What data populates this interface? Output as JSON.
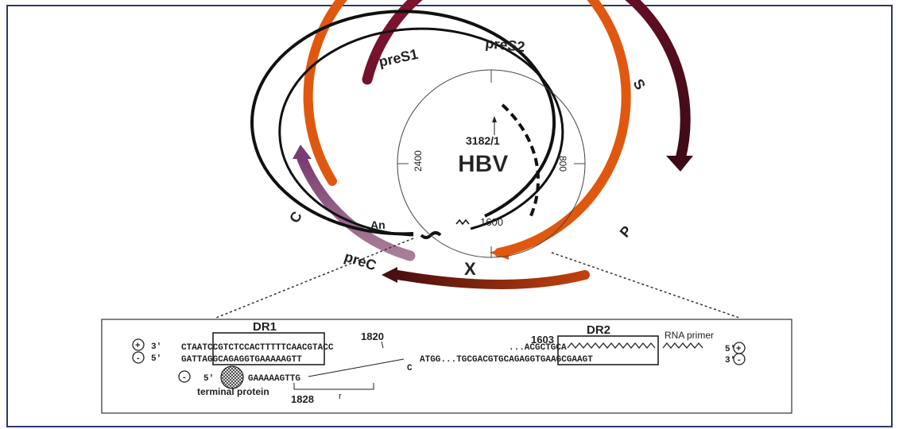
{
  "genome": {
    "center_label": "HBV",
    "origin_label": "3182/1",
    "tick_labels": [
      "800",
      "1600",
      "2400"
    ],
    "cap_label": "An"
  },
  "orfs": {
    "preS1": "preS1",
    "preS2": "preS2",
    "S": "S",
    "P": "P",
    "X": "X",
    "C": "C",
    "preC": "preC"
  },
  "colors": {
    "preS": "#8b1535",
    "S": "#4a0d1c",
    "P": "#e0580f",
    "X_start": "#4a0f0f",
    "X_end": "#c2410c",
    "C": "#7a3b73",
    "preC": "#9c6a88",
    "dna": "#111111",
    "frame": "#2b3a67"
  },
  "inset": {
    "dr1_label": "DR1",
    "dr2_label": "DR2",
    "pos_1820": "1820",
    "pos_1603": "1603",
    "pos_1828": "1828",
    "rna_primer_label": "RNA primer",
    "terminal_protein_label": "terminal protein",
    "strand_top_left": "3'",
    "strand_bottom_left": "5'",
    "strand_top_right": "5'",
    "strand_bottom_right": "3'",
    "strand_tp": "5'",
    "plus_sign": "+",
    "minus_sign": "-",
    "seq_top_a": "CTAATCCGTCTCCACTTTTTCAACGTACC",
    "seq_top_b": "...ACGCTGCA",
    "seq_bottom_a": "GATTAGGCAGAGGTGAAAAAGTT",
    "seq_bottom_b": "ATGG...TGCGACGTGCAGAGGTGAAGCGAAGT",
    "seq_tp": "GAAAAAGTTG",
    "c_letter": "C",
    "r_letter": "r"
  }
}
